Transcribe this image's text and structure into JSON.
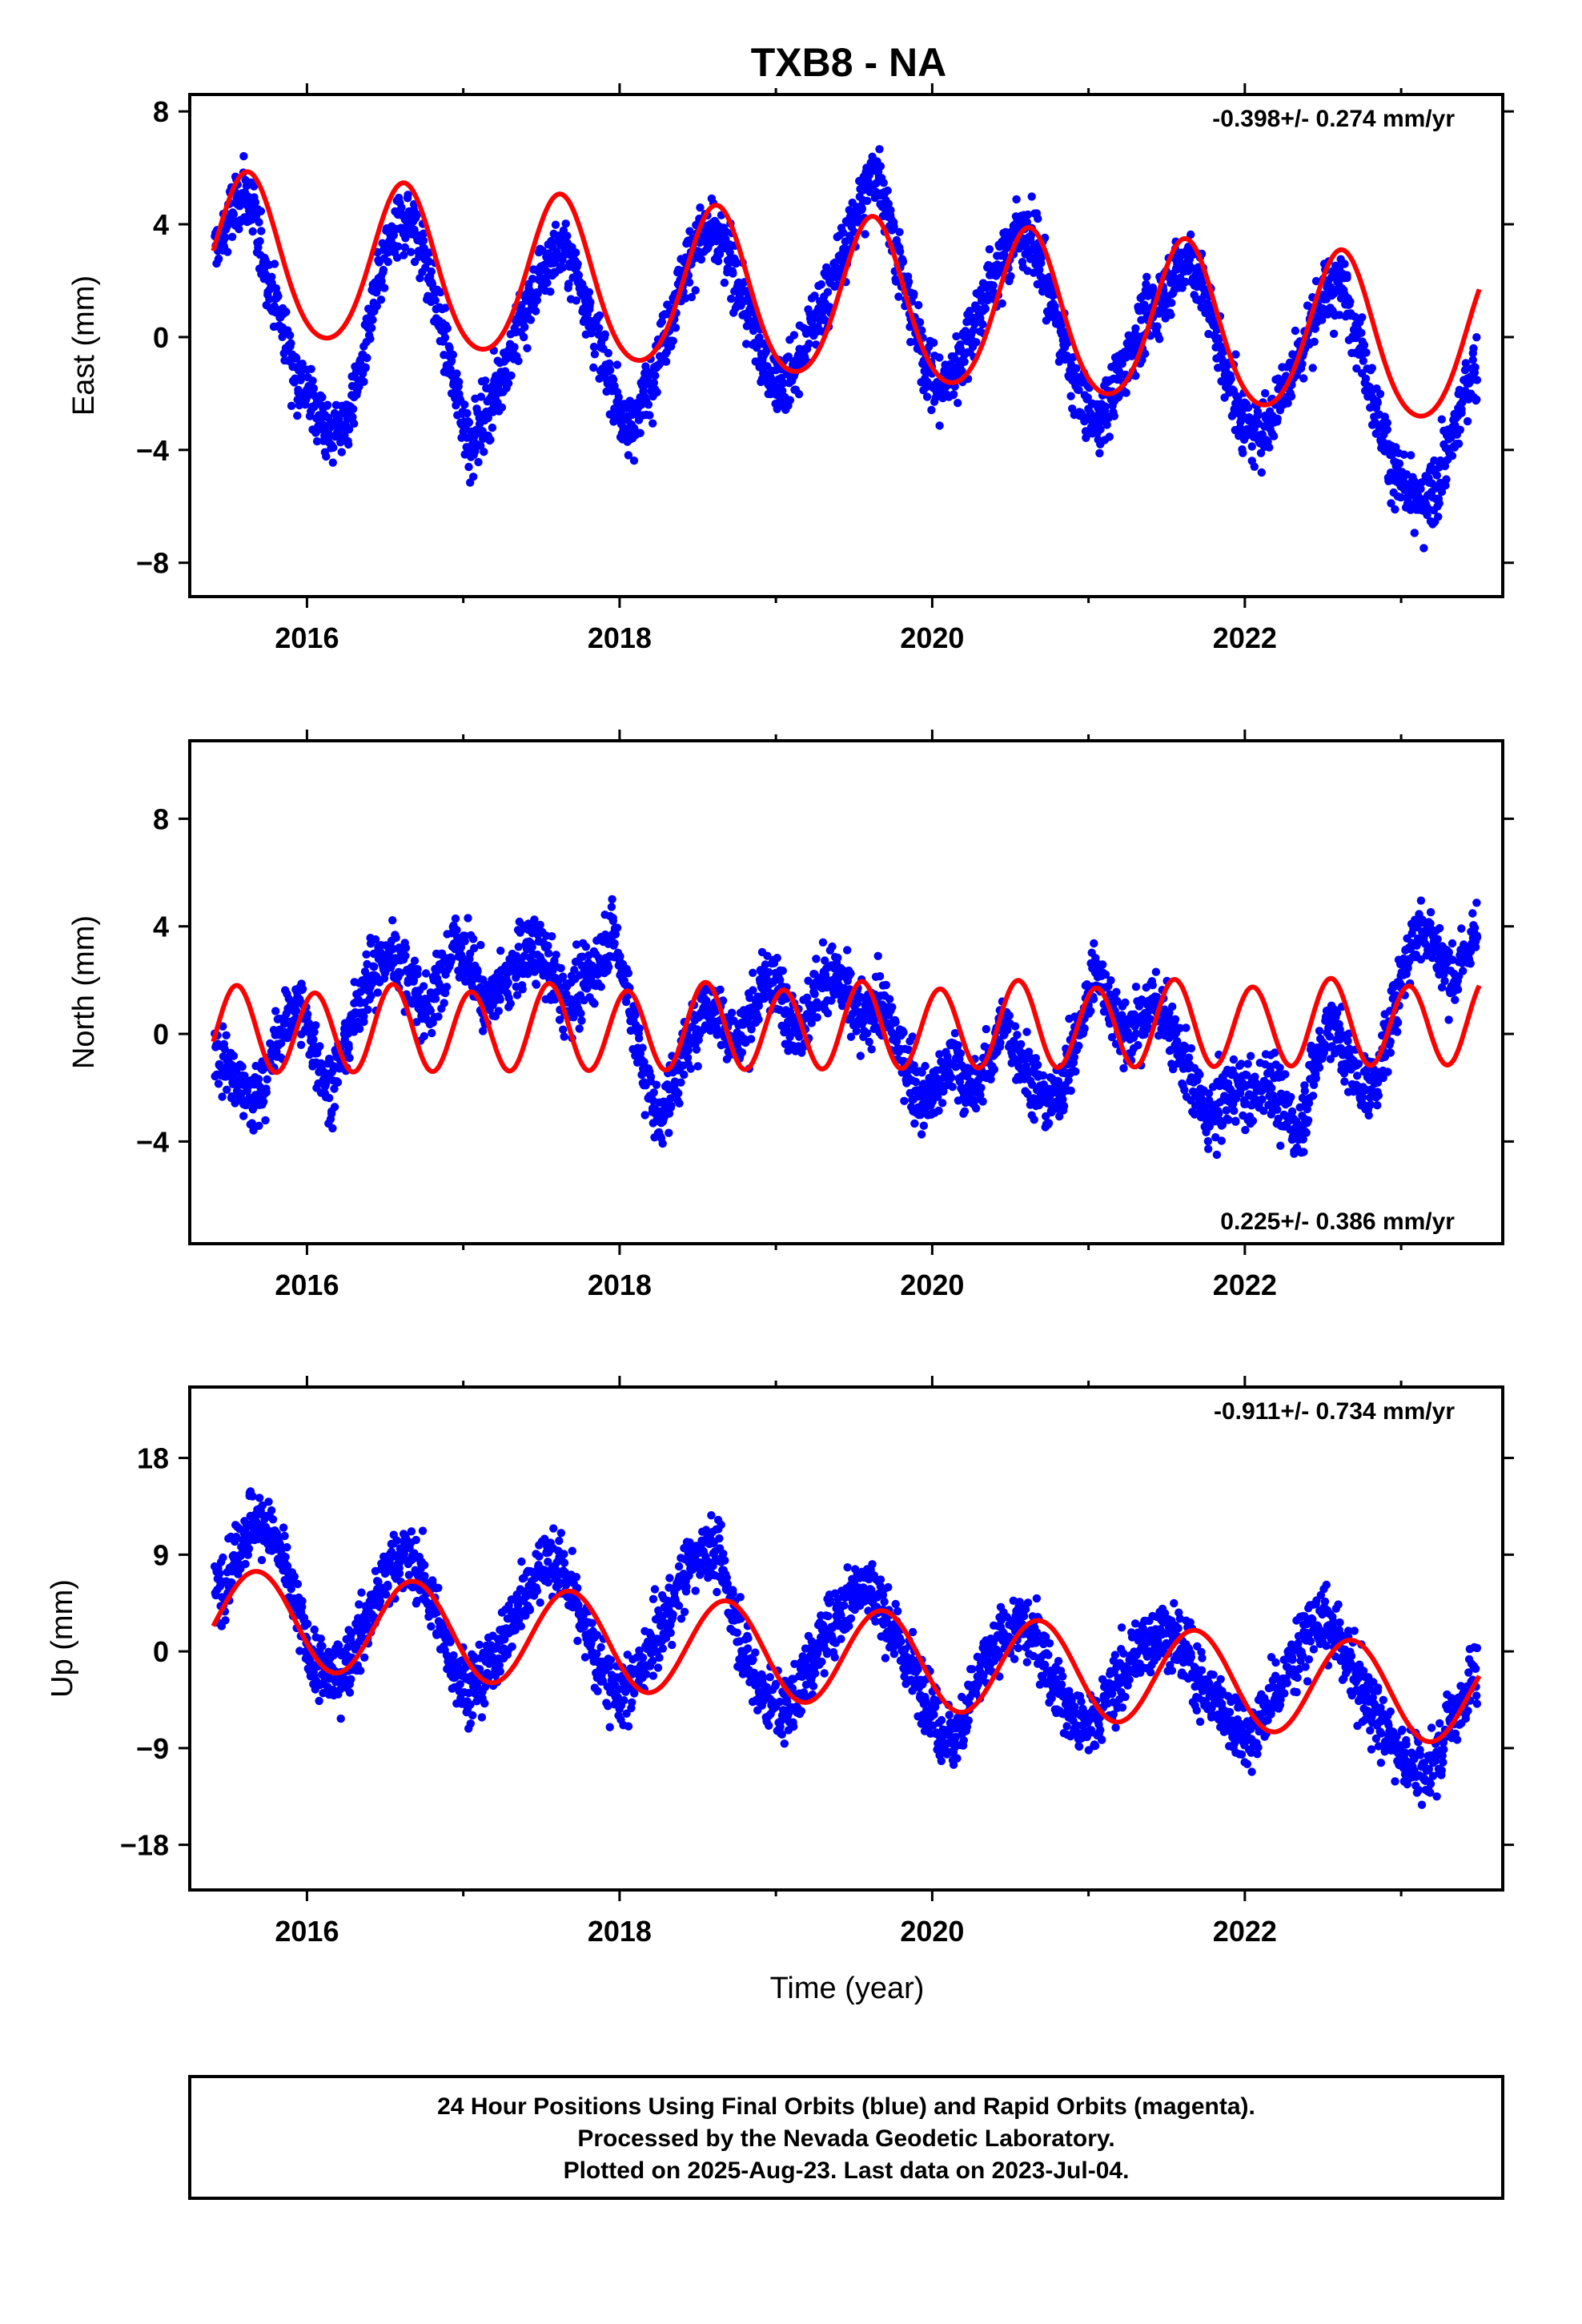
{
  "chart_data": {
    "title": "TXB8 - NA",
    "x_label": "Time (year)",
    "x_range": [
      2015.25,
      2023.65
    ],
    "x_ticks": [
      "2016",
      "2018",
      "2020",
      "2022"
    ],
    "colors": {
      "data": "#0000ff",
      "fit": "#ff0000"
    },
    "panels": [
      {
        "type": "scatter",
        "ylabel": "East (mm)",
        "ylim": [
          -9.2,
          8.6
        ],
        "yticks": [
          "8",
          "4",
          "0",
          "−4",
          "−8"
        ],
        "ytick_values": [
          8,
          4,
          0,
          -4,
          -8
        ],
        "rate_label": "-0.398+/- 0.274 mm/yr",
        "rate_position": "top-right",
        "model": {
          "start": 2015.4,
          "end": 2023.5,
          "offset_at_start": 2.8,
          "trend_total": -3.2,
          "annual_amp": 2.85,
          "semiannual_amp": 0.3,
          "peak": 2015.62
        },
        "series": [
          {
            "name": "",
            "kind": "points",
            "x": [
              2015.45,
              2015.52,
              2015.6,
              2015.68,
              2015.75,
              2015.85,
              2015.95,
              2016.05,
              2016.15,
              2016.25,
              2016.35,
              2016.45,
              2016.55,
              2016.65,
              2016.75,
              2016.85,
              2016.95,
              2017.05,
              2017.15,
              2017.25,
              2017.35,
              2017.45,
              2017.55,
              2017.65,
              2017.75,
              2017.85,
              2017.95,
              2018.05,
              2018.15,
              2018.25,
              2018.35,
              2018.45,
              2018.55,
              2018.65,
              2018.75,
              2018.85,
              2018.95,
              2019.05,
              2019.15,
              2019.25,
              2019.35,
              2019.45,
              2019.55,
              2019.65,
              2019.75,
              2019.85,
              2019.95,
              2020.05,
              2020.15,
              2020.25,
              2020.35,
              2020.45,
              2020.55,
              2020.65,
              2020.75,
              2020.85,
              2020.95,
              2021.05,
              2021.15,
              2021.25,
              2021.35,
              2021.45,
              2021.55,
              2021.65,
              2021.75,
              2021.85,
              2021.95,
              2022.05,
              2022.15,
              2022.25,
              2022.35,
              2022.45,
              2022.55,
              2022.65,
              2022.75,
              2022.85,
              2022.95,
              2023.05,
              2023.15,
              2023.25,
              2023.35,
              2023.45
            ],
            "y": [
              3.2,
              4.5,
              5.1,
              3.8,
              2.1,
              0.3,
              -1.6,
              -2.4,
              -3.5,
              -3.0,
              -1.1,
              1.8,
              3.6,
              4.3,
              3.0,
              0.6,
              -1.9,
              -3.8,
              -2.6,
              -1.3,
              0.2,
              1.5,
              2.8,
              3.1,
              1.9,
              0.1,
              -1.7,
              -3.4,
              -2.2,
              -0.6,
              1.2,
              2.9,
              3.7,
              3.3,
              2.1,
              0.4,
              -1.3,
              -1.8,
              -0.9,
              0.6,
              1.8,
              3.3,
              4.9,
              6.1,
              3.6,
              1.2,
              -0.8,
              -1.9,
              -1.1,
              0.3,
              1.6,
              2.7,
              3.9,
              3.4,
              1.6,
              -0.4,
              -2.3,
              -3.1,
              -2.0,
              -0.7,
              0.5,
              1.2,
              2.3,
              2.8,
              1.4,
              -0.6,
              -2.4,
              -3.6,
              -3.0,
              -1.8,
              -0.6,
              0.8,
              1.9,
              1.5,
              -0.4,
              -2.8,
              -4.6,
              -5.8,
              -6.1,
              -4.9,
              -3.2,
              -1.2
            ]
          },
          {
            "name": "",
            "kind": "fit"
          }
        ]
      },
      {
        "type": "scatter",
        "ylabel": "North (mm)",
        "ylim": [
          -7.8,
          10.9
        ],
        "yticks": [
          "8",
          "4",
          "0",
          "−4"
        ],
        "ytick_values": [
          8,
          4,
          0,
          -4
        ],
        "rate_label": "0.225+/- 0.386 mm/yr",
        "rate_position": "bottom-right",
        "model": {
          "start": 2015.4,
          "end": 2023.5,
          "offset_at_start": 0.1,
          "trend_total": 0.3,
          "annual_amp": 0.15,
          "semiannual_amp": 1.55,
          "peak": 2015.55
        },
        "series": [
          {
            "name": "",
            "kind": "points",
            "x": [
              2015.45,
              2015.55,
              2015.65,
              2015.75,
              2015.85,
              2015.95,
              2016.05,
              2016.15,
              2016.25,
              2016.35,
              2016.45,
              2016.55,
              2016.65,
              2016.75,
              2016.85,
              2016.95,
              2017.05,
              2017.15,
              2017.25,
              2017.35,
              2017.45,
              2017.55,
              2017.65,
              2017.75,
              2017.85,
              2017.95,
              2018.05,
              2018.15,
              2018.25,
              2018.35,
              2018.45,
              2018.55,
              2018.65,
              2018.75,
              2018.85,
              2018.95,
              2019.05,
              2019.15,
              2019.25,
              2019.35,
              2019.45,
              2019.55,
              2019.65,
              2019.75,
              2019.85,
              2019.95,
              2020.05,
              2020.15,
              2020.25,
              2020.35,
              2020.45,
              2020.55,
              2020.65,
              2020.75,
              2020.85,
              2020.95,
              2021.05,
              2021.15,
              2021.25,
              2021.35,
              2021.45,
              2021.55,
              2021.65,
              2021.75,
              2021.85,
              2021.95,
              2022.05,
              2022.15,
              2022.25,
              2022.35,
              2022.45,
              2022.55,
              2022.65,
              2022.75,
              2022.85,
              2022.95,
              2023.05,
              2023.15,
              2023.25,
              2023.35,
              2023.45
            ],
            "y": [
              -0.8,
              -1.9,
              -2.6,
              -1.4,
              0.3,
              1.2,
              -0.6,
              -2.1,
              -0.4,
              1.6,
              2.4,
              3.1,
              2.2,
              0.8,
              1.9,
              3.4,
              2.6,
              1.1,
              1.8,
              2.7,
              3.3,
              2.4,
              1.2,
              1.7,
              2.5,
              3.9,
              1.6,
              -1.3,
              -3.2,
              -1.8,
              -0.2,
              1.1,
              0.6,
              -0.4,
              0.9,
              2.1,
              1.3,
              0.2,
              1.4,
              2.3,
              1.5,
              0.4,
              1.1,
              0.2,
              -1.4,
              -2.6,
              -1.9,
              -0.8,
              -2.4,
              -1.2,
              0.4,
              -0.6,
              -1.8,
              -2.7,
              -1.5,
              0.2,
              2.6,
              1.1,
              -0.3,
              0.8,
              1.2,
              -0.4,
              -1.6,
              -3.1,
              -2.8,
              -1.9,
              -2.4,
              -1.6,
              -2.9,
              -3.6,
              -1.2,
              0.6,
              -0.8,
              -2.1,
              -1.6,
              0.8,
              3.2,
              4.1,
              2.8,
              2.1,
              3.6
            ]
          },
          {
            "name": "",
            "kind": "fit"
          }
        ]
      },
      {
        "type": "scatter",
        "ylabel": "Up (mm)",
        "ylim": [
          -22.2,
          24.6
        ],
        "yticks": [
          "18",
          "9",
          "0",
          "−9",
          "−18"
        ],
        "ytick_values": [
          18,
          9,
          0,
          -9,
          -18
        ],
        "rate_label": "-0.911+/- 0.734 mm/yr",
        "rate_position": "top-right",
        "model": {
          "start": 2015.4,
          "end": 2023.5,
          "offset_at_start": 3.2,
          "trend_total": -7.4,
          "annual_amp": 4.5,
          "semiannual_amp": 0.0,
          "peak": 2015.68
        },
        "series": [
          {
            "name": "",
            "kind": "points",
            "x": [
              2015.45,
              2015.55,
              2015.65,
              2015.75,
              2015.85,
              2015.95,
              2016.05,
              2016.15,
              2016.25,
              2016.35,
              2016.45,
              2016.55,
              2016.65,
              2016.75,
              2016.85,
              2016.95,
              2017.05,
              2017.15,
              2017.25,
              2017.35,
              2017.45,
              2017.55,
              2017.65,
              2017.75,
              2017.85,
              2017.95,
              2018.05,
              2018.15,
              2018.25,
              2018.35,
              2018.45,
              2018.55,
              2018.65,
              2018.75,
              2018.85,
              2018.95,
              2019.05,
              2019.15,
              2019.25,
              2019.35,
              2019.45,
              2019.55,
              2019.65,
              2019.75,
              2019.85,
              2019.95,
              2020.05,
              2020.15,
              2020.25,
              2020.35,
              2020.45,
              2020.55,
              2020.65,
              2020.75,
              2020.85,
              2020.95,
              2021.05,
              2021.15,
              2021.25,
              2021.35,
              2021.45,
              2021.55,
              2021.65,
              2021.75,
              2021.85,
              2021.95,
              2022.05,
              2022.15,
              2022.25,
              2022.35,
              2022.45,
              2022.55,
              2022.65,
              2022.75,
              2022.85,
              2022.95,
              2023.05,
              2023.15,
              2023.25,
              2023.35,
              2023.45
            ],
            "y": [
              6.1,
              9.4,
              12.3,
              11.6,
              8.2,
              3.1,
              -1.4,
              -2.6,
              -1.2,
              1.9,
              5.3,
              8.4,
              9.1,
              6.6,
              2.2,
              -1.7,
              -3.4,
              -2.1,
              0.8,
              3.9,
              6.7,
              8.8,
              7.2,
              3.5,
              -0.6,
              -3.1,
              -4.2,
              -1.3,
              1.6,
              4.8,
              7.9,
              10.2,
              8.1,
              2.4,
              -2.6,
              -4.1,
              -6.3,
              -3.5,
              -0.4,
              2.6,
              4.7,
              6.3,
              4.9,
              1.8,
              -1.2,
              -3.6,
              -7.4,
              -8.3,
              -4.1,
              -0.9,
              1.2,
              2.6,
              1.3,
              -1.6,
              -4.8,
              -7.2,
              -6.4,
              -3.9,
              -1.5,
              0.6,
              1.9,
              1.2,
              -0.9,
              -3.4,
              -5.6,
              -6.9,
              -7.8,
              -5.2,
              -2.4,
              0.4,
              2.8,
              2.3,
              -0.6,
              -3.6,
              -6.1,
              -8.4,
              -10.3,
              -11.9,
              -8.6,
              -5.4,
              -2.7
            ]
          },
          {
            "name": "",
            "kind": "fit"
          }
        ]
      }
    ]
  },
  "footer": {
    "lines": [
      "24 Hour Positions Using Final Orbits (blue) and Rapid Orbits (magenta).",
      "Processed by the Nevada Geodetic Laboratory.",
      "Plotted on 2025-Aug-23. Last data on 2023-Jul-04."
    ]
  }
}
